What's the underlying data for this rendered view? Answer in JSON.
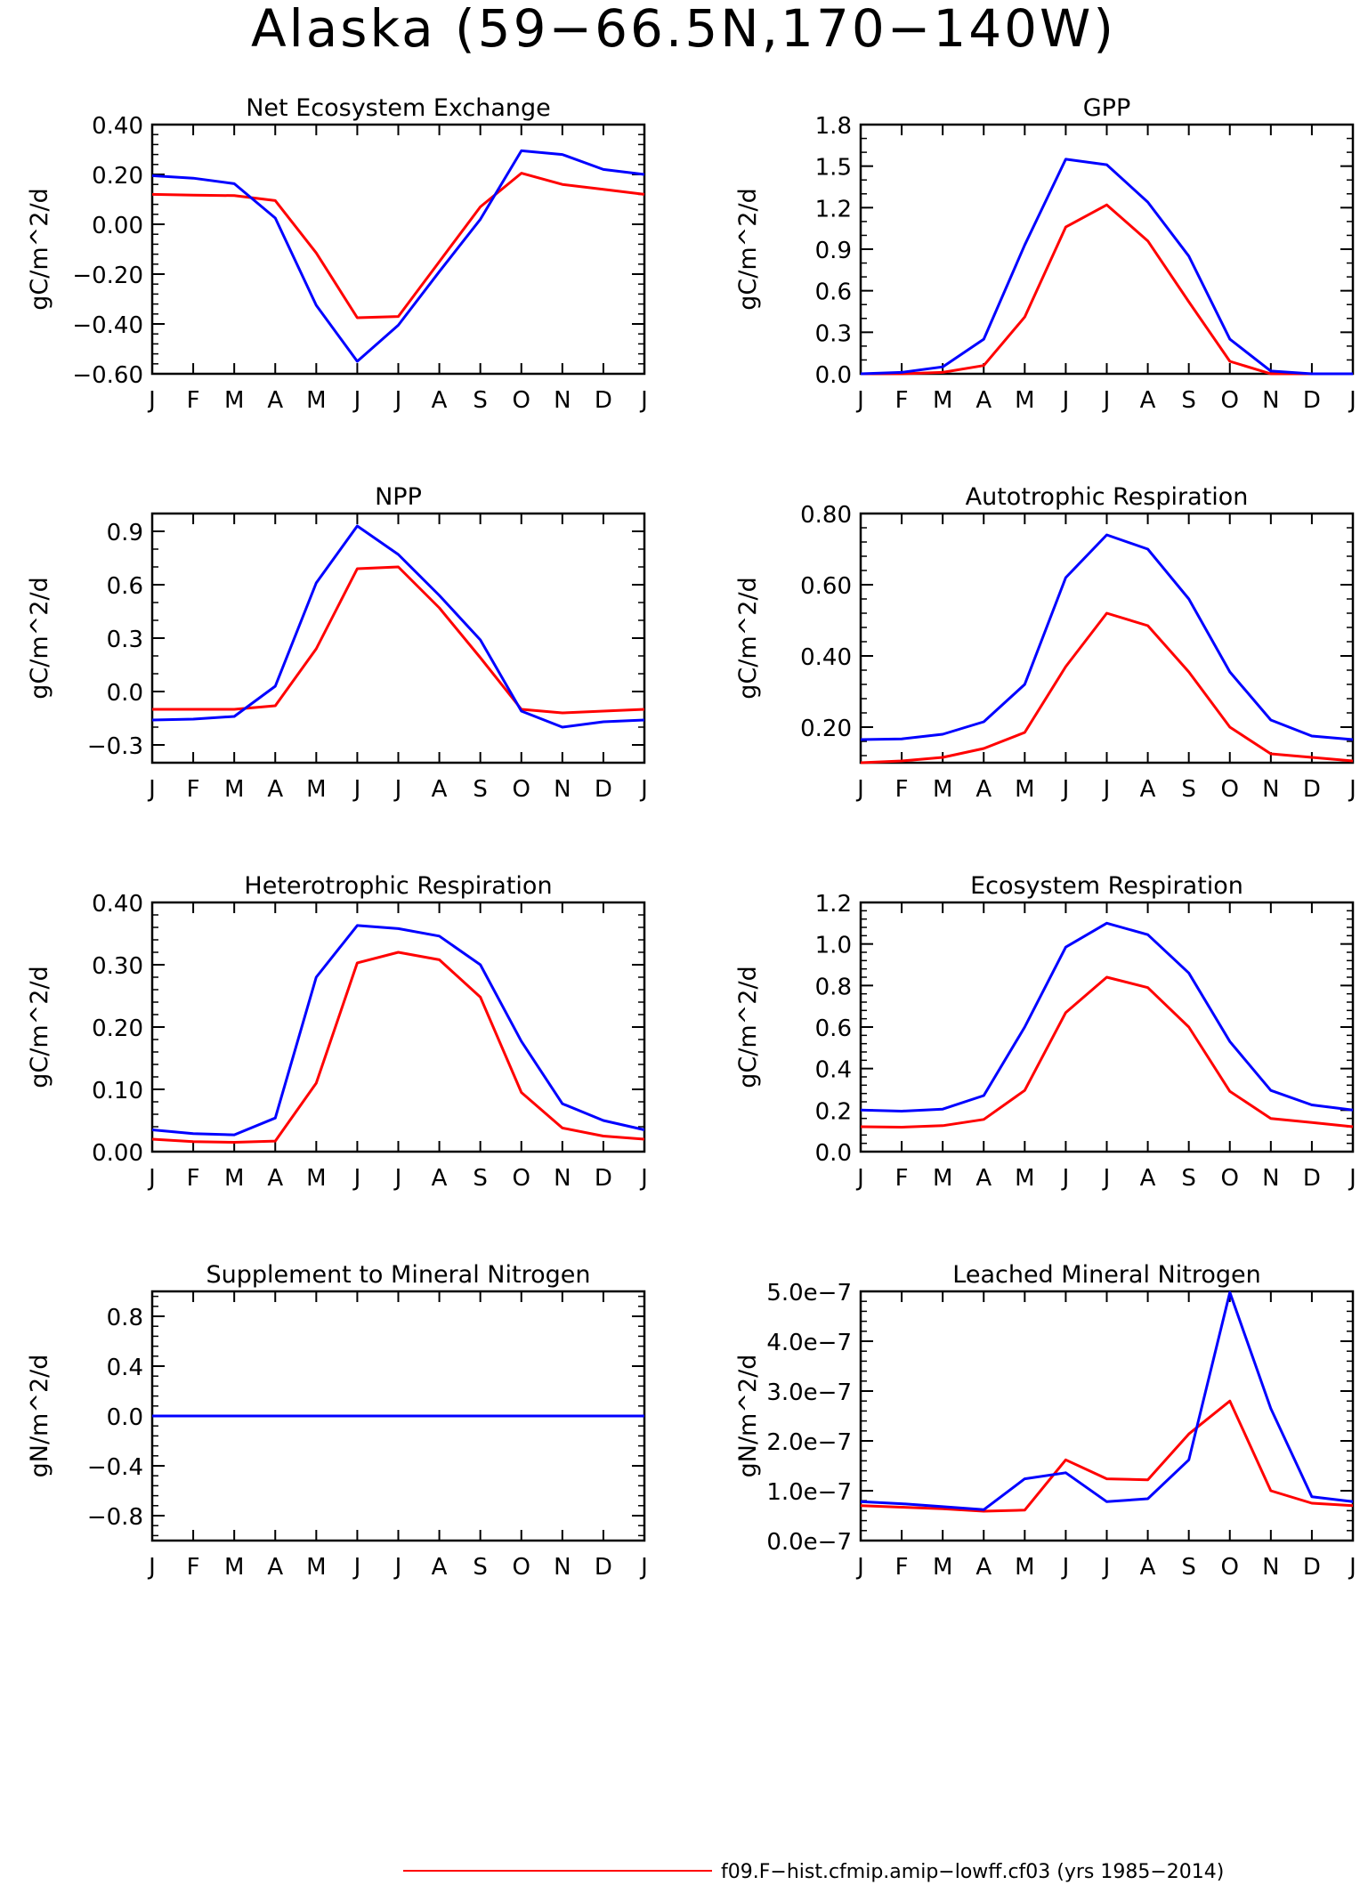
{
  "figure": {
    "title": "Alaska (59−66.5N,170−140W)"
  },
  "legend": {
    "entries": [
      {
        "label": "f09.F−hist.cfmip.amip−lowff.cf03 (yrs 1985−2014)",
        "color": "#ff0000"
      }
    ],
    "placement": "bottom-right"
  },
  "chart_data": [
    {
      "type": "line",
      "title": "Net Ecosystem Exchange",
      "ylabel": "gC/m^2/d",
      "categories": [
        "J",
        "F",
        "M",
        "A",
        "M",
        "J",
        "J",
        "A",
        "S",
        "O",
        "N",
        "D",
        "J"
      ],
      "ylim": [
        -0.6,
        0.4
      ],
      "yticks": [
        -0.6,
        -0.4,
        -0.2,
        0.0,
        0.2,
        0.4
      ],
      "ytick_labels": [
        "−0.60",
        "−0.40",
        "−0.20",
        "0.00",
        "0.20",
        "0.40"
      ],
      "yminor": 4,
      "series": [
        {
          "color": "#ff0000",
          "values": [
            0.12,
            0.117,
            0.115,
            0.095,
            -0.115,
            -0.375,
            -0.37,
            -0.15,
            0.07,
            0.205,
            0.16,
            0.14,
            0.12
          ]
        },
        {
          "color": "#0000ff",
          "values": [
            0.195,
            0.185,
            0.163,
            0.025,
            -0.325,
            -0.55,
            -0.405,
            -0.19,
            0.02,
            0.295,
            0.28,
            0.22,
            0.2
          ]
        }
      ]
    },
    {
      "type": "line",
      "title": "GPP",
      "ylabel": "gC/m^2/d",
      "categories": [
        "J",
        "F",
        "M",
        "A",
        "M",
        "J",
        "J",
        "A",
        "S",
        "O",
        "N",
        "D",
        "J"
      ],
      "ylim": [
        0,
        1.8
      ],
      "yticks": [
        0,
        0.3,
        0.6,
        0.9,
        1.2,
        1.5,
        1.8
      ],
      "ytick_labels": [
        "0.0",
        "0.3",
        "0.6",
        "0.9",
        "1.2",
        "1.5",
        "1.8"
      ],
      "yminor": 2,
      "series": [
        {
          "color": "#ff0000",
          "values": [
            0.0,
            0.0,
            0.01,
            0.06,
            0.41,
            1.06,
            1.22,
            0.96,
            0.52,
            0.09,
            0.0,
            0.0,
            0.0
          ]
        },
        {
          "color": "#0000ff",
          "values": [
            0.0,
            0.01,
            0.05,
            0.25,
            0.93,
            1.55,
            1.51,
            1.24,
            0.85,
            0.25,
            0.02,
            0.0,
            0.0
          ]
        }
      ]
    },
    {
      "type": "line",
      "title": "NPP",
      "ylabel": "gC/m^2/d",
      "categories": [
        "J",
        "F",
        "M",
        "A",
        "M",
        "J",
        "J",
        "A",
        "S",
        "O",
        "N",
        "D",
        "J"
      ],
      "ylim": [
        -0.4,
        1.0
      ],
      "yticks": [
        -0.3,
        0,
        0.3,
        0.6,
        0.9
      ],
      "ytick_labels": [
        "−0.3",
        "0.0",
        "0.3",
        "0.6",
        "0.9"
      ],
      "yminor": 2,
      "series": [
        {
          "color": "#ff0000",
          "values": [
            -0.1,
            -0.1,
            -0.1,
            -0.08,
            0.24,
            0.69,
            0.7,
            0.47,
            0.19,
            -0.1,
            -0.12,
            -0.11,
            -0.1
          ]
        },
        {
          "color": "#0000ff",
          "values": [
            -0.16,
            -0.155,
            -0.14,
            0.03,
            0.61,
            0.93,
            0.77,
            0.54,
            0.29,
            -0.11,
            -0.2,
            -0.17,
            -0.16
          ]
        }
      ]
    },
    {
      "type": "line",
      "title": "Autotrophic Respiration",
      "ylabel": "gC/m^2/d",
      "categories": [
        "J",
        "F",
        "M",
        "A",
        "M",
        "J",
        "J",
        "A",
        "S",
        "O",
        "N",
        "D",
        "J"
      ],
      "ylim": [
        0.1,
        0.8
      ],
      "yticks": [
        0.2,
        0.4,
        0.6,
        0.8
      ],
      "ytick_labels": [
        "0.20",
        "0.40",
        "0.60",
        "0.80"
      ],
      "yminor": 4,
      "series": [
        {
          "color": "#ff0000",
          "values": [
            0.1,
            0.105,
            0.115,
            0.14,
            0.185,
            0.37,
            0.52,
            0.485,
            0.355,
            0.2,
            0.125,
            0.115,
            0.105
          ]
        },
        {
          "color": "#0000ff",
          "values": [
            0.165,
            0.167,
            0.18,
            0.215,
            0.32,
            0.62,
            0.74,
            0.7,
            0.56,
            0.355,
            0.22,
            0.175,
            0.165
          ]
        }
      ]
    },
    {
      "type": "line",
      "title": "Heterotrophic Respiration",
      "ylabel": "gC/m^2/d",
      "categories": [
        "J",
        "F",
        "M",
        "A",
        "M",
        "J",
        "J",
        "A",
        "S",
        "O",
        "N",
        "D",
        "J"
      ],
      "ylim": [
        0,
        0.4
      ],
      "yticks": [
        0,
        0.1,
        0.2,
        0.3,
        0.4
      ],
      "ytick_labels": [
        "0.00",
        "0.10",
        "0.20",
        "0.30",
        "0.40"
      ],
      "yminor": 4,
      "series": [
        {
          "color": "#ff0000",
          "values": [
            0.02,
            0.016,
            0.015,
            0.017,
            0.11,
            0.303,
            0.32,
            0.308,
            0.248,
            0.095,
            0.038,
            0.025,
            0.02
          ]
        },
        {
          "color": "#0000ff",
          "values": [
            0.035,
            0.029,
            0.027,
            0.054,
            0.28,
            0.363,
            0.358,
            0.346,
            0.3,
            0.177,
            0.077,
            0.05,
            0.035
          ]
        }
      ]
    },
    {
      "type": "line",
      "title": "Ecosystem Respiration",
      "ylabel": "gC/m^2/d",
      "categories": [
        "J",
        "F",
        "M",
        "A",
        "M",
        "J",
        "J",
        "A",
        "S",
        "O",
        "N",
        "D",
        "J"
      ],
      "ylim": [
        0,
        1.2
      ],
      "yticks": [
        0,
        0.2,
        0.4,
        0.6,
        0.8,
        1.0,
        1.2
      ],
      "ytick_labels": [
        "0.0",
        "0.2",
        "0.4",
        "0.6",
        "0.8",
        "1.0",
        "1.2"
      ],
      "yminor": 4,
      "series": [
        {
          "color": "#ff0000",
          "values": [
            0.12,
            0.118,
            0.125,
            0.155,
            0.295,
            0.67,
            0.84,
            0.79,
            0.6,
            0.29,
            0.16,
            0.14,
            0.12
          ]
        },
        {
          "color": "#0000ff",
          "values": [
            0.2,
            0.195,
            0.205,
            0.27,
            0.6,
            0.985,
            1.1,
            1.045,
            0.86,
            0.53,
            0.295,
            0.225,
            0.2
          ]
        }
      ]
    },
    {
      "type": "line",
      "title": "Supplement to Mineral Nitrogen",
      "ylabel": "gN/m^2/d",
      "categories": [
        "J",
        "F",
        "M",
        "A",
        "M",
        "J",
        "J",
        "A",
        "S",
        "O",
        "N",
        "D",
        "J"
      ],
      "ylim": [
        -1.0,
        1.0
      ],
      "yticks": [
        -0.8,
        -0.4,
        0,
        0.4,
        0.8
      ],
      "ytick_labels": [
        "−0.8",
        "−0.4",
        "0.0",
        "0.4",
        "0.8"
      ],
      "yminor": 4,
      "series": [
        {
          "color": "#ff0000",
          "values": [
            0,
            0,
            0,
            0,
            0,
            0,
            0,
            0,
            0,
            0,
            0,
            0,
            0
          ]
        },
        {
          "color": "#0000ff",
          "values": [
            0,
            0,
            0,
            0,
            0,
            0,
            0,
            0,
            0,
            0,
            0,
            0,
            0
          ]
        }
      ]
    },
    {
      "type": "line",
      "title": "Leached Mineral Nitrogen",
      "ylabel": "gN/m^2/d",
      "categories": [
        "J",
        "F",
        "M",
        "A",
        "M",
        "J",
        "J",
        "A",
        "S",
        "O",
        "N",
        "D",
        "J"
      ],
      "ylim": [
        0,
        5e-07
      ],
      "yticks": [
        0,
        1e-07,
        2e-07,
        3e-07,
        4e-07,
        5e-07
      ],
      "ytick_labels": [
        "0.0e−7",
        "1.0e−7",
        "2.0e−7",
        "3.0e−7",
        "4.0e−7",
        "5.0e−7"
      ],
      "yminor": 4,
      "series": [
        {
          "color": "#ff0000",
          "values": [
            7e-08,
            6.7e-08,
            6.4e-08,
            5.9e-08,
            6.1e-08,
            1.62e-07,
            1.24e-07,
            1.22e-07,
            2.14e-07,
            2.8e-07,
            1e-07,
            7.5e-08,
            7e-08
          ]
        },
        {
          "color": "#0000ff",
          "values": [
            7.8e-08,
            7.4e-08,
            6.8e-08,
            6.2e-08,
            1.24e-07,
            1.36e-07,
            7.8e-08,
            8.4e-08,
            1.62e-07,
            4.98e-07,
            2.65e-07,
            8.8e-08,
            7.8e-08
          ]
        }
      ]
    }
  ]
}
